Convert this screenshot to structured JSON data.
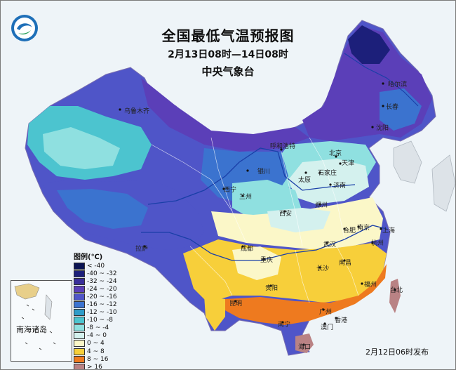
{
  "title": "全国最低气温预报图",
  "period": "2月13日08时—14日08时",
  "agency": "中央气象台",
  "issued": "2月12日06时发布",
  "inset_label": "南海诸岛",
  "legend": {
    "title": "图例(℃)",
    "items": [
      {
        "label": "< -40",
        "color": "#0a1452"
      },
      {
        "label": "-40 ~ -32",
        "color": "#1c1f7a"
      },
      {
        "label": "-32 ~ -24",
        "color": "#3a2f9a"
      },
      {
        "label": "-24 ~ -20",
        "color": "#5b3fb8"
      },
      {
        "label": "-20 ~ -16",
        "color": "#4f55c8"
      },
      {
        "label": "-16 ~ -12",
        "color": "#3b73cf"
      },
      {
        "label": "-12 ~ -10",
        "color": "#2f9cc8"
      },
      {
        "label": "-10 ~ -8",
        "color": "#4cc4cf"
      },
      {
        "label": "-8 ~ -4",
        "color": "#8fe0e0"
      },
      {
        "label": "-4 ~ 0",
        "color": "#d4f1ee"
      },
      {
        "label": "0 ~ 4",
        "color": "#fbf7c8"
      },
      {
        "label": "4 ~ 8",
        "color": "#f7cf3a"
      },
      {
        "label": "8 ~ 16",
        "color": "#ee7a1f"
      },
      {
        "label": "> 16",
        "color": "#b98284"
      }
    ]
  },
  "cities": {
    "urumqi": "乌鲁木齐",
    "harbin": "哈尔滨",
    "changchun": "长春",
    "shenyang": "沈阳",
    "hohhot": "呼和浩特",
    "beijing": "北京",
    "tianjin": "天津",
    "yinchuan": "银川",
    "taiyuan": "太原",
    "shijiazhuang": "石家庄",
    "jinan": "济南",
    "xining": "西宁",
    "lanzhou": "兰州",
    "zhengzhou": "郑州",
    "xian": "西安",
    "hefei": "合肥",
    "nanjing": "南京",
    "shanghai": "上海",
    "lhasa": "拉萨",
    "chengdu": "成都",
    "wuhan": "武汉",
    "hangzhou": "杭州",
    "chongqing": "重庆",
    "changsha": "长沙",
    "nanchang": "南昌",
    "guiyang": "贵阳",
    "fuzhou": "福州",
    "taipei": "台北",
    "kunming": "昆明",
    "guangzhou": "广州",
    "nanning": "南宁",
    "hongkong": "香港",
    "macau": "澳门",
    "haikou": "海口"
  }
}
